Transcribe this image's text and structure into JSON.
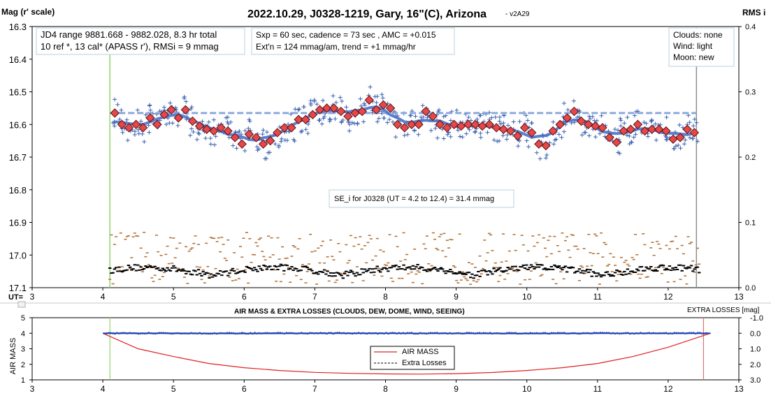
{
  "chart_data": [
    {
      "type": "scatter",
      "title": "2022.10.29, J0328-1219, Gary, 16\"(C), Arizona",
      "version": "- v2A29",
      "ylabel_left": "Mag (r' scale)",
      "ylabel_right": "RMS i",
      "xlabel": "UT=",
      "xlim": [
        3,
        13
      ],
      "ylim_left": [
        16.3,
        17.1
      ],
      "ylim_right": [
        0.0,
        0.4
      ],
      "left_y_reversed": true,
      "x_ticks": [
        "3",
        "4",
        "5",
        "6",
        "7",
        "8",
        "9",
        "10",
        "11",
        "12",
        "13"
      ],
      "y_ticks_left": [
        "16.3",
        "16.4",
        "16.5",
        "16.6",
        "16.7",
        "16.8",
        "16.9",
        "17.0",
        "17.1"
      ],
      "y_ticks_right": [
        "0.4",
        "0.3",
        "0.2",
        "0.1",
        "0.0"
      ],
      "vertical_markers": [
        {
          "x": 4.1,
          "color": "#93d46a"
        },
        {
          "x": 12.4,
          "color": "#8f8f8f"
        }
      ],
      "reference_level": {
        "y": 16.565,
        "x_start": 4.1,
        "x_end": 12.4,
        "style": "dashed"
      },
      "annotations": {
        "box1_line1": "JD4 range 9881.668 - 9882.028, 8.3 hr total",
        "box1_line2": "10 ref *, 13 cal*  (APASS r'), RMSi = 9 mmag",
        "box2_line1": "Sxp = 60 sec, cadence = 73 sec , AMC = +0.015",
        "box2_line2": "Ext'n = 124 mmag/am, trend = +1 mmag/hr",
        "box3_line1": "Clouds: none",
        "box3_line2": "Wind: light",
        "box3_line3": "Moon: new",
        "se_note": "SE_i for J0328 (UT = 4.2 to 12.4) = 31.4 mmag"
      },
      "series": [
        {
          "marker": "diamond",
          "color": "#e8474a",
          "x": [
            4.17,
            4.27,
            4.37,
            4.47,
            4.57,
            4.67,
            4.77,
            4.87,
            4.97,
            5.07,
            5.17,
            5.27,
            5.37,
            5.47,
            5.57,
            5.67,
            5.77,
            5.87,
            5.97,
            6.07,
            6.17,
            6.27,
            6.37,
            6.47,
            6.57,
            6.67,
            6.77,
            6.87,
            6.97,
            7.07,
            7.17,
            7.27,
            7.37,
            7.47,
            7.57,
            7.67,
            7.77,
            7.87,
            7.97,
            8.07,
            8.17,
            8.27,
            8.37,
            8.47,
            8.57,
            8.67,
            8.77,
            8.87,
            8.97,
            9.07,
            9.17,
            9.27,
            9.37,
            9.47,
            9.57,
            9.67,
            9.77,
            9.87,
            9.97,
            10.07,
            10.17,
            10.27,
            10.37,
            10.47,
            10.57,
            10.67,
            10.77,
            10.87,
            10.97,
            11.07,
            11.17,
            11.27,
            11.37,
            11.47,
            11.57,
            11.67,
            11.77,
            11.87,
            11.97,
            12.07,
            12.17,
            12.27,
            12.37
          ],
          "y": [
            16.565,
            16.6,
            16.61,
            16.6,
            16.61,
            16.58,
            16.6,
            16.57,
            16.555,
            16.58,
            16.555,
            16.59,
            16.605,
            16.615,
            16.62,
            16.61,
            16.62,
            16.64,
            16.66,
            16.63,
            16.64,
            16.66,
            16.65,
            16.625,
            16.61,
            16.61,
            16.585,
            16.585,
            16.57,
            16.555,
            16.55,
            16.55,
            16.56,
            16.575,
            16.565,
            16.56,
            16.525,
            16.555,
            16.54,
            16.55,
            16.6,
            16.61,
            16.6,
            16.6,
            16.56,
            16.575,
            16.6,
            16.61,
            16.6,
            16.605,
            16.6,
            16.6,
            16.605,
            16.6,
            16.61,
            16.615,
            16.62,
            16.635,
            16.61,
            16.625,
            16.66,
            16.665,
            16.62,
            16.6,
            16.58,
            16.56,
            16.59,
            16.6,
            16.605,
            16.61,
            16.64,
            16.655,
            16.62,
            16.615,
            16.6,
            16.62,
            16.615,
            16.615,
            16.62,
            16.645,
            16.64,
            16.615,
            16.625
          ]
        },
        {
          "marker": "plus",
          "color": "#3b62b0",
          "description_values": "individual measurements scattered about the diamonds"
        },
        {
          "marker": "dash",
          "color": "#b5743a",
          "axis": "right",
          "y_range": [
            0.0,
            0.1
          ]
        },
        {
          "marker": "dash",
          "color": "#000000",
          "axis": "right",
          "y_range": [
            0.01,
            0.04
          ]
        }
      ]
    },
    {
      "type": "line",
      "title": "AIR MASS & EXTRA LOSSES (CLOUDS, DEW, DOME, WIND, SEEING)",
      "ylabel_left": "AIR MASS",
      "ylabel_right": "EXTRA LOSSES [mag]",
      "xlim": [
        3,
        13
      ],
      "ylim_left": [
        1,
        5
      ],
      "ylim_right": [
        3.0,
        -1.0
      ],
      "x_ticks": [
        "3",
        "4",
        "5",
        "6",
        "7",
        "8",
        "9",
        "10",
        "11",
        "12",
        "13"
      ],
      "y_ticks_left": [
        "5",
        "4",
        "3",
        "2",
        "1"
      ],
      "y_ticks_right": [
        "-1.0",
        "0.0",
        "1.0",
        "2.0",
        "3.0"
      ],
      "vertical_markers": [
        {
          "x": 4.1,
          "color": "#93d46a"
        },
        {
          "x": 12.5,
          "color": "#e07070"
        }
      ],
      "legend": {
        "air_mass": "AIR MASS",
        "extra_losses": "Extra Losses"
      },
      "series": [
        {
          "name": "AIR MASS",
          "color": "#e02020",
          "x": [
            4.0,
            4.5,
            5.0,
            5.5,
            6.0,
            6.5,
            7.0,
            7.5,
            8.0,
            8.5,
            9.0,
            9.5,
            10.0,
            10.5,
            11.0,
            11.5,
            12.0,
            12.5,
            12.6
          ],
          "y": [
            4.0,
            3.0,
            2.5,
            2.05,
            1.78,
            1.6,
            1.48,
            1.42,
            1.38,
            1.37,
            1.4,
            1.47,
            1.6,
            1.78,
            2.05,
            2.5,
            3.1,
            3.85,
            4.0
          ]
        },
        {
          "name": "Extra Losses",
          "color": "#1d3fb0",
          "x": [
            4.0,
            5.0,
            6.0,
            7.0,
            8.0,
            9.0,
            10.0,
            11.0,
            12.0,
            12.6
          ],
          "y": [
            0.0,
            0.0,
            0.02,
            0.0,
            0.0,
            0.01,
            0.02,
            0.0,
            0.01,
            0.0
          ]
        }
      ]
    }
  ]
}
